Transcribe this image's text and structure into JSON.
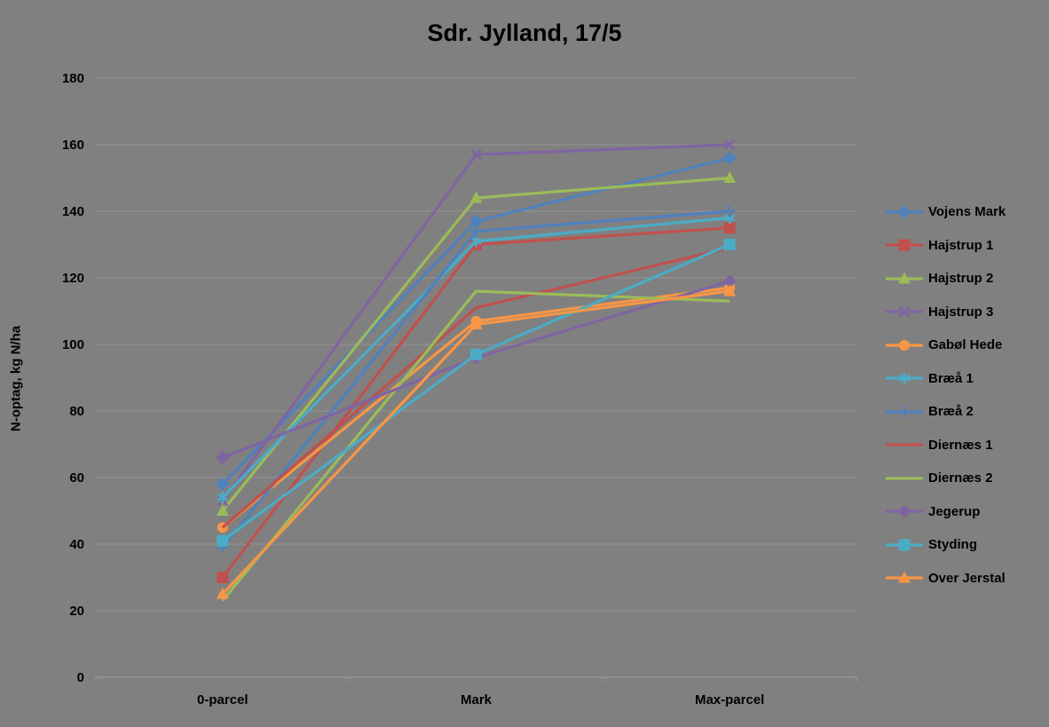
{
  "title": "Sdr. Jylland, 17/5",
  "chart_data": {
    "type": "line",
    "title": "Sdr. Jylland, 17/5",
    "xlabel": "",
    "ylabel": "N-optag, kg N/ha",
    "categories": [
      "0-parcel",
      "Mark",
      "Max-parcel"
    ],
    "ylim": [
      0,
      180
    ],
    "ytick_step": 20,
    "grid": true,
    "legend_position": "right",
    "colors": {
      "background": "#808080",
      "gridline": "#959595",
      "axis": "#959595",
      "text": "#000000"
    },
    "series": [
      {
        "name": "Vojens Mark",
        "color": "#4F81BD",
        "marker": "diamond",
        "values": [
          58,
          137,
          156
        ]
      },
      {
        "name": "Hajstrup 1",
        "color": "#C0504D",
        "marker": "square",
        "values": [
          30,
          130,
          135
        ]
      },
      {
        "name": "Hajstrup 2",
        "color": "#9BBB59",
        "marker": "triangle",
        "values": [
          50,
          144,
          150
        ]
      },
      {
        "name": "Hajstrup 3",
        "color": "#8064A2",
        "marker": "x",
        "values": [
          53,
          157,
          160
        ]
      },
      {
        "name": "Gabøl Hede",
        "color": "#F79646",
        "marker": "circle",
        "values": [
          45,
          107,
          117
        ]
      },
      {
        "name": "Bræå 1",
        "color": "#4BACC6",
        "marker": "asterisk",
        "values": [
          54,
          131,
          138
        ]
      },
      {
        "name": "Bræå 2",
        "color": "#4F81BD",
        "marker": "plus",
        "values": [
          39,
          134,
          140
        ]
      },
      {
        "name": "Diernæs 1",
        "color": "#C0504D",
        "marker": "none",
        "values": [
          45,
          111,
          129
        ]
      },
      {
        "name": "Diernæs 2",
        "color": "#9BBB59",
        "marker": "none",
        "values": [
          23,
          116,
          113
        ]
      },
      {
        "name": "Jegerup",
        "color": "#8064A2",
        "marker": "diamond",
        "values": [
          66,
          96,
          119
        ]
      },
      {
        "name": "Styding",
        "color": "#4BACC6",
        "marker": "square",
        "values": [
          41,
          97,
          130
        ]
      },
      {
        "name": "Over Jerstal",
        "color": "#F79646",
        "marker": "triangle",
        "values": [
          25,
          106,
          116
        ]
      }
    ]
  }
}
